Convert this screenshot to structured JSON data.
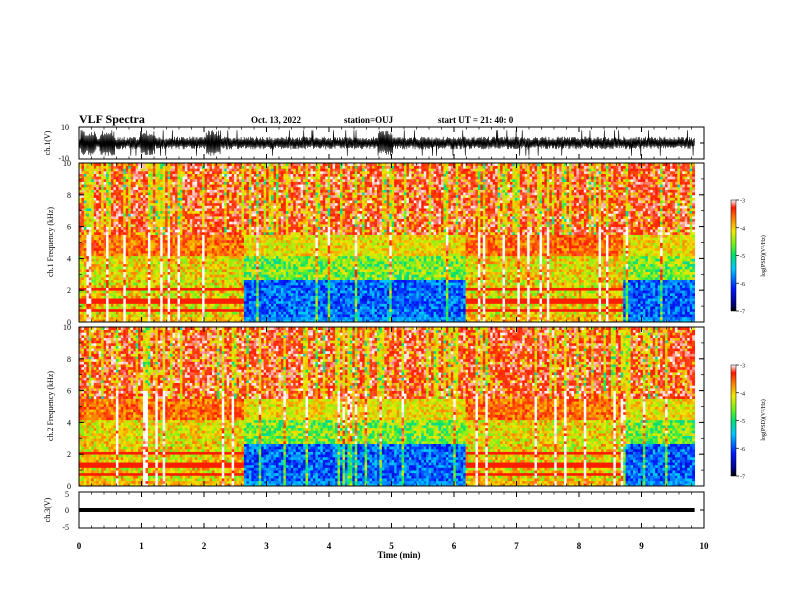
{
  "header": {
    "title": "VLF Spectra",
    "date": "Oct. 13, 2022",
    "station": "station=OUJ",
    "start": "start  UT =  21: 40: 0"
  },
  "chart_data": {
    "type": "heatmap",
    "title": "VLF Spectra",
    "xlabel": "Time (min)",
    "xlim": [
      0,
      10
    ],
    "x_ticks": [
      "0",
      "1",
      "2",
      "3",
      "4",
      "5",
      "6",
      "7",
      "8",
      "9",
      "10"
    ],
    "panels": [
      {
        "name": "ch1_waveform",
        "type": "line",
        "ylabel": "ch.1(V)",
        "ylim": [
          -10,
          10
        ],
        "y_ticks": [
          "10",
          "-10"
        ],
        "data_end_min": 9.85,
        "typical_amplitude_v": 5,
        "burst_times_min": [
          0.15,
          0.45,
          1.1,
          2.15,
          4.9
        ]
      },
      {
        "name": "ch1_spectrogram",
        "type": "heatmap",
        "ylabel": "ch.1 Frequency (kHz)",
        "ylim": [
          0,
          10
        ],
        "y_ticks": [
          "0",
          "2",
          "4",
          "6",
          "8",
          "10"
        ],
        "colorbar": {
          "label": "log(PSD)(V²/Hz)",
          "range": [
            -7,
            -3
          ],
          "ticks": [
            "-3",
            "-4",
            "-5",
            "-6",
            "-7"
          ]
        },
        "quiet_intervals_min": [
          [
            2.65,
            6.2
          ],
          [
            8.7,
            9.85
          ]
        ],
        "active_intervals_min": [
          [
            0,
            2.65
          ],
          [
            6.2,
            8.7
          ]
        ],
        "data_end_min": 9.85
      },
      {
        "name": "ch2_spectrogram",
        "type": "heatmap",
        "ylabel": "ch.2 Frequency (kHz)",
        "ylim": [
          0,
          10
        ],
        "y_ticks": [
          "0",
          "2",
          "4",
          "6",
          "8",
          "10"
        ],
        "colorbar": {
          "label": "log(PSD)(V²/Hz)",
          "range": [
            -7,
            -3
          ],
          "ticks": [
            "-3",
            "-4",
            "-5",
            "-6",
            "-7"
          ]
        },
        "quiet_intervals_min": [
          [
            2.65,
            6.2
          ],
          [
            8.7,
            9.85
          ]
        ],
        "active_intervals_min": [
          [
            0,
            2.65
          ],
          [
            6.2,
            8.7
          ]
        ],
        "data_end_min": 9.85
      },
      {
        "name": "ch3_waveform",
        "type": "line",
        "ylabel": "ch.3(V)",
        "ylim": [
          -5,
          5
        ],
        "y_ticks": [
          "5",
          "0",
          "-5"
        ],
        "value_v": 0,
        "data_end_min": 9.85
      }
    ]
  },
  "colors": {
    "trace": "#000000",
    "axes": "#000000",
    "background": "#ffffff"
  }
}
